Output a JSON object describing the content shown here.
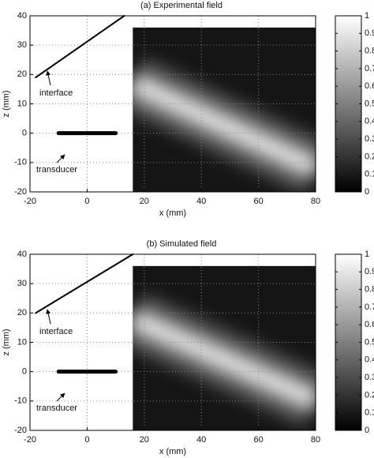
{
  "chart_data": [
    {
      "type": "heatmap",
      "title": "(a) Experimental field",
      "xlabel": "x (mm)",
      "ylabel": "z (mm)",
      "xlim": [
        -20,
        80
      ],
      "ylim": [
        -20,
        40
      ],
      "xticks": [
        -20,
        0,
        20,
        40,
        60,
        80
      ],
      "yticks": [
        -20,
        -10,
        0,
        10,
        20,
        30,
        40
      ],
      "grid": true,
      "field": {
        "x": [
          16,
          80
        ],
        "y": [
          -20,
          36
        ]
      },
      "beam": {
        "x": [
          16,
          80
        ],
        "y": [
          17,
          -12
        ]
      },
      "interface": {
        "label": "interface",
        "x": [
          -18,
          13
        ],
        "y": [
          19,
          40
        ]
      },
      "transducer": {
        "label": "transducer",
        "x": [
          -10,
          10
        ],
        "y": [
          0,
          0
        ]
      },
      "colorbar": {
        "lim": [
          0,
          1
        ],
        "ticks": [
          0,
          0.1,
          0.2,
          0.3,
          0.4,
          0.5,
          0.6,
          0.7,
          0.8,
          0.9,
          1
        ]
      }
    },
    {
      "type": "heatmap",
      "title": "(b) Simulated field",
      "xlabel": "x (mm)",
      "ylabel": "z (mm)",
      "xlim": [
        -20,
        80
      ],
      "ylim": [
        -20,
        40
      ],
      "xticks": [
        -20,
        0,
        20,
        40,
        60,
        80
      ],
      "yticks": [
        -20,
        -10,
        0,
        10,
        20,
        30,
        40
      ],
      "grid": true,
      "field": {
        "x": [
          16,
          80
        ],
        "y": [
          -20,
          36
        ]
      },
      "beam": {
        "x": [
          16,
          80
        ],
        "y": [
          18,
          -10
        ]
      },
      "interface": {
        "label": "interface",
        "x": [
          -18,
          16
        ],
        "y": [
          20,
          40
        ]
      },
      "transducer": {
        "label": "transducer",
        "x": [
          -10,
          10
        ],
        "y": [
          0,
          0
        ]
      },
      "colorbar": {
        "lim": [
          0,
          1
        ],
        "ticks": [
          0,
          0.1,
          0.2,
          0.3,
          0.4,
          0.5,
          0.6,
          0.7,
          0.8,
          0.9,
          1
        ]
      }
    }
  ]
}
